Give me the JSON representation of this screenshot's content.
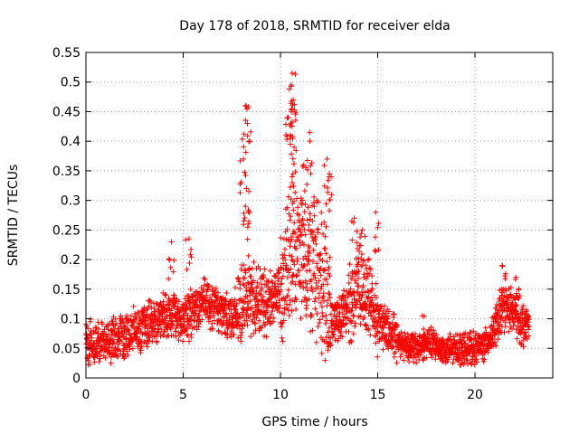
{
  "chart_data": {
    "type": "scatter",
    "title": "Day 178 of 2018, SRMTID for receiver elda",
    "xlabel": "GPS time / hours",
    "ylabel": "SRMTID / TECUs",
    "xlim": [
      0,
      24
    ],
    "ylim": [
      0,
      0.55
    ],
    "xticks": [
      0,
      5,
      10,
      15,
      20
    ],
    "xtick_labels": [
      "0",
      "5",
      "10",
      "15",
      "20"
    ],
    "yticks": [
      0,
      0.05,
      0.1,
      0.15,
      0.2,
      0.25,
      0.3,
      0.35,
      0.4,
      0.45,
      0.5,
      0.55
    ],
    "ytick_labels": [
      "0",
      "0.05",
      "0.1",
      "0.15",
      "0.2",
      "0.25",
      "0.3",
      "0.35",
      "0.4",
      "0.45",
      "0.5",
      "0.55"
    ],
    "grid": true,
    "marker": "+",
    "color": "#ff0000",
    "x_extent": [
      0,
      22.8
    ],
    "trend": [
      [
        0.0,
        0.065
      ],
      [
        0.5,
        0.05
      ],
      [
        1.0,
        0.06
      ],
      [
        1.5,
        0.065
      ],
      [
        2.0,
        0.07
      ],
      [
        2.5,
        0.08
      ],
      [
        3.0,
        0.085
      ],
      [
        3.5,
        0.1
      ],
      [
        4.0,
        0.1
      ],
      [
        4.5,
        0.105
      ],
      [
        5.0,
        0.1
      ],
      [
        5.5,
        0.11
      ],
      [
        6.0,
        0.13
      ],
      [
        6.5,
        0.12
      ],
      [
        7.0,
        0.11
      ],
      [
        7.5,
        0.105
      ],
      [
        8.0,
        0.12
      ],
      [
        8.5,
        0.14
      ],
      [
        9.0,
        0.13
      ],
      [
        9.5,
        0.13
      ],
      [
        10.0,
        0.15
      ],
      [
        10.5,
        0.2
      ],
      [
        11.0,
        0.22
      ],
      [
        11.5,
        0.2
      ],
      [
        12.0,
        0.18
      ],
      [
        12.5,
        0.11
      ],
      [
        13.0,
        0.1
      ],
      [
        13.5,
        0.12
      ],
      [
        14.0,
        0.16
      ],
      [
        14.5,
        0.14
      ],
      [
        15.0,
        0.1
      ],
      [
        15.5,
        0.08
      ],
      [
        16.0,
        0.065
      ],
      [
        16.5,
        0.055
      ],
      [
        17.0,
        0.05
      ],
      [
        17.5,
        0.06
      ],
      [
        18.0,
        0.055
      ],
      [
        18.5,
        0.045
      ],
      [
        19.0,
        0.05
      ],
      [
        19.5,
        0.05
      ],
      [
        20.0,
        0.05
      ],
      [
        20.5,
        0.055
      ],
      [
        21.0,
        0.08
      ],
      [
        21.5,
        0.12
      ],
      [
        22.0,
        0.11
      ],
      [
        22.5,
        0.09
      ],
      [
        22.8,
        0.085
      ]
    ],
    "peaks": [
      {
        "x": 8.2,
        "y": 0.46
      },
      {
        "x": 8.3,
        "y": 0.43
      },
      {
        "x": 8.1,
        "y": 0.37
      },
      {
        "x": 8.25,
        "y": 0.32
      },
      {
        "x": 8.2,
        "y": 0.29
      },
      {
        "x": 10.6,
        "y": 0.515
      },
      {
        "x": 10.55,
        "y": 0.495
      },
      {
        "x": 10.65,
        "y": 0.47
      },
      {
        "x": 10.4,
        "y": 0.44
      },
      {
        "x": 10.5,
        "y": 0.41
      },
      {
        "x": 10.7,
        "y": 0.39
      },
      {
        "x": 11.5,
        "y": 0.415
      },
      {
        "x": 11.2,
        "y": 0.36
      },
      {
        "x": 12.4,
        "y": 0.37
      },
      {
        "x": 12.5,
        "y": 0.34
      },
      {
        "x": 14.2,
        "y": 0.25
      },
      {
        "x": 14.9,
        "y": 0.28
      },
      {
        "x": 13.8,
        "y": 0.27
      },
      {
        "x": 4.4,
        "y": 0.23
      },
      {
        "x": 5.3,
        "y": 0.235
      },
      {
        "x": 21.4,
        "y": 0.19
      },
      {
        "x": 22.1,
        "y": 0.17
      },
      {
        "x": 17.3,
        "y": 0.105
      }
    ]
  }
}
